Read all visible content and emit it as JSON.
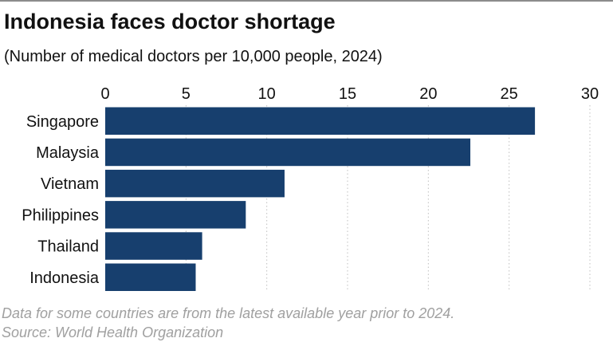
{
  "title": "Indonesia faces doctor shortage",
  "subtitle": "(Number of medical doctors per 10,000 people, 2024)",
  "footnote": "Data for some countries are from the latest available year prior to 2024.",
  "source": "Source: World Health Organization",
  "colors": {
    "bar": "#173f6e",
    "grid": "#bfbfbf"
  },
  "chart_data": {
    "type": "bar",
    "orientation": "horizontal",
    "title": "Indonesia faces doctor shortage",
    "subtitle": "(Number of medical doctors per 10,000 people, 2024)",
    "categories": [
      "Singapore",
      "Malaysia",
      "Vietnam",
      "Philippines",
      "Thailand",
      "Indonesia"
    ],
    "values": [
      26.6,
      22.6,
      11.1,
      8.7,
      6.0,
      5.6
    ],
    "xlim": [
      0,
      30
    ],
    "xticks": [
      0,
      5,
      10,
      15,
      20,
      25,
      30
    ],
    "xtick_labels": [
      "0",
      "5",
      "10",
      "15",
      "20",
      "25",
      "30"
    ],
    "xlabel": "",
    "ylabel": "",
    "grid": true,
    "axis_position": "top"
  }
}
